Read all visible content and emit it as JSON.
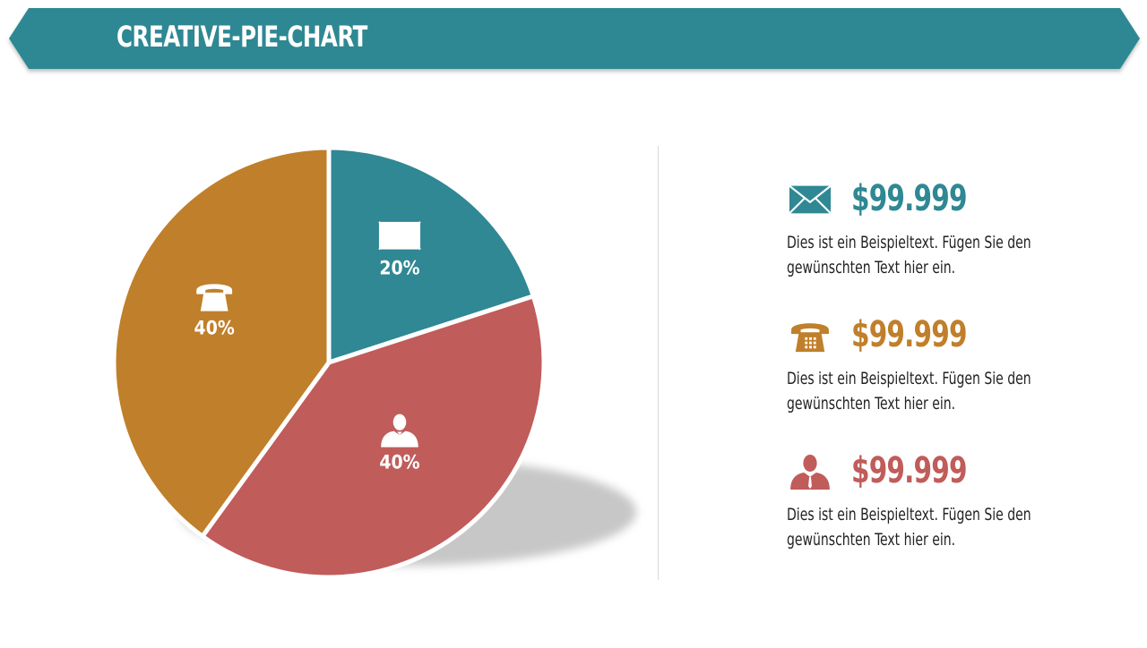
{
  "header": {
    "title": "CREATIVE-PIE-CHART"
  },
  "chart_data": {
    "type": "pie",
    "slices": [
      {
        "label": "20%",
        "value": 20,
        "color": "#2f8893",
        "icon": "envelope-icon"
      },
      {
        "label": "40%",
        "value": 40,
        "color": "#c05c5a",
        "icon": "businessman-icon"
      },
      {
        "label": "40%",
        "value": 40,
        "color": "#c07f2a",
        "icon": "telephone-icon"
      }
    ]
  },
  "legend": {
    "items": [
      {
        "value": "$99.999",
        "text": "Dies ist ein Beispieltext.  Fügen Sie den gewünschten Text hier ein.",
        "color": "#2f8893",
        "icon": "envelope-icon"
      },
      {
        "value": "$99.999",
        "text": "Dies ist ein Beispieltext.  Fügen Sie den gewünschten Text hier ein.",
        "color": "#c07f2a",
        "icon": "telephone-icon"
      },
      {
        "value": "$99.999",
        "text": "Dies ist ein Beispieltext.  Fügen Sie den gewünschten Text hier ein.",
        "color": "#c05c5a",
        "icon": "businessman-icon"
      }
    ]
  }
}
